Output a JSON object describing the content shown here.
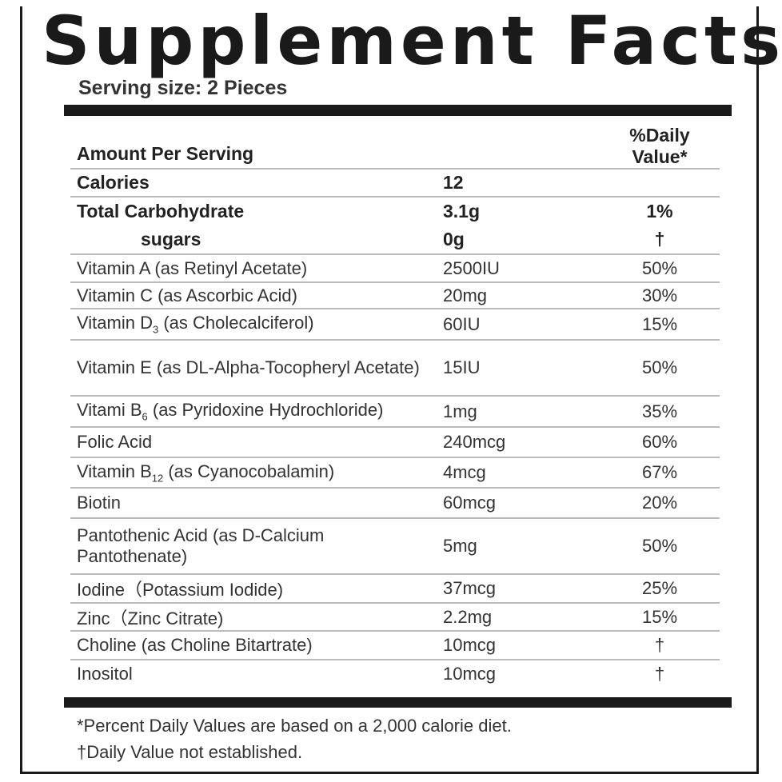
{
  "title": "Supplement Facts",
  "serving_size": "Serving size: 2 Pieces",
  "header": {
    "amount_label": "Amount Per Serving",
    "dv_label": "%Daily Value*"
  },
  "rows": [
    {
      "name": "Calories",
      "amount": "12",
      "dv": "",
      "bold": true
    },
    {
      "name": "Total Carbohydrate",
      "amount": "3.1g",
      "dv": "1%",
      "bold": true
    },
    {
      "name": "sugars",
      "amount": "0g",
      "dv": "†",
      "bold": true,
      "indent": true
    },
    {
      "name": "Vitamin A (as Retinyl Acetate)",
      "amount": "2500IU",
      "dv": "50%"
    },
    {
      "name": "Vitamin C (as Ascorbic Acid)",
      "amount": "20mg",
      "dv": "30%"
    },
    {
      "name": "Vitamin D",
      "sub": "3",
      "name_rest": " (as Cholecalciferol)",
      "amount": "60IU",
      "dv": "15%"
    },
    {
      "name": "Vitamin E (as DL-Alpha-Tocopheryl Acetate)",
      "amount": "15IU",
      "dv": "50%",
      "h": 70
    },
    {
      "name": "Vitami B",
      "sub": "6",
      "name_rest": " (as Pyridoxine Hydrochloride)",
      "amount": "1mg",
      "dv": "35%"
    },
    {
      "name": "Folic Acid",
      "amount": "240mcg",
      "dv": "60%"
    },
    {
      "name": "Vitamin B",
      "sub": "12",
      "name_rest": " (as Cyanocobalamin)",
      "amount": "4mcg",
      "dv": "67%"
    },
    {
      "name": "Biotin",
      "amount": "60mcg",
      "dv": "20%"
    },
    {
      "name": "Pantothenic Acid (as D-Calcium Pantothenate)",
      "amount": "5mg",
      "dv": "50%",
      "h": 70
    },
    {
      "name": "Iodine（Potassium Iodide)",
      "amount": "37mcg",
      "dv": "25%"
    },
    {
      "name": "Zinc（Zinc Citrate)",
      "amount": "2.2mg",
      "dv": "15%"
    },
    {
      "name": "Choline (as Choline Bitartrate)",
      "amount": "10mcg",
      "dv": "†"
    },
    {
      "name": "Inositol",
      "amount": "10mcg",
      "dv": "†"
    }
  ],
  "footnotes": [
    "*Percent Daily Values are based on a 2,000 calorie diet.",
    "†Daily Value not established."
  ]
}
